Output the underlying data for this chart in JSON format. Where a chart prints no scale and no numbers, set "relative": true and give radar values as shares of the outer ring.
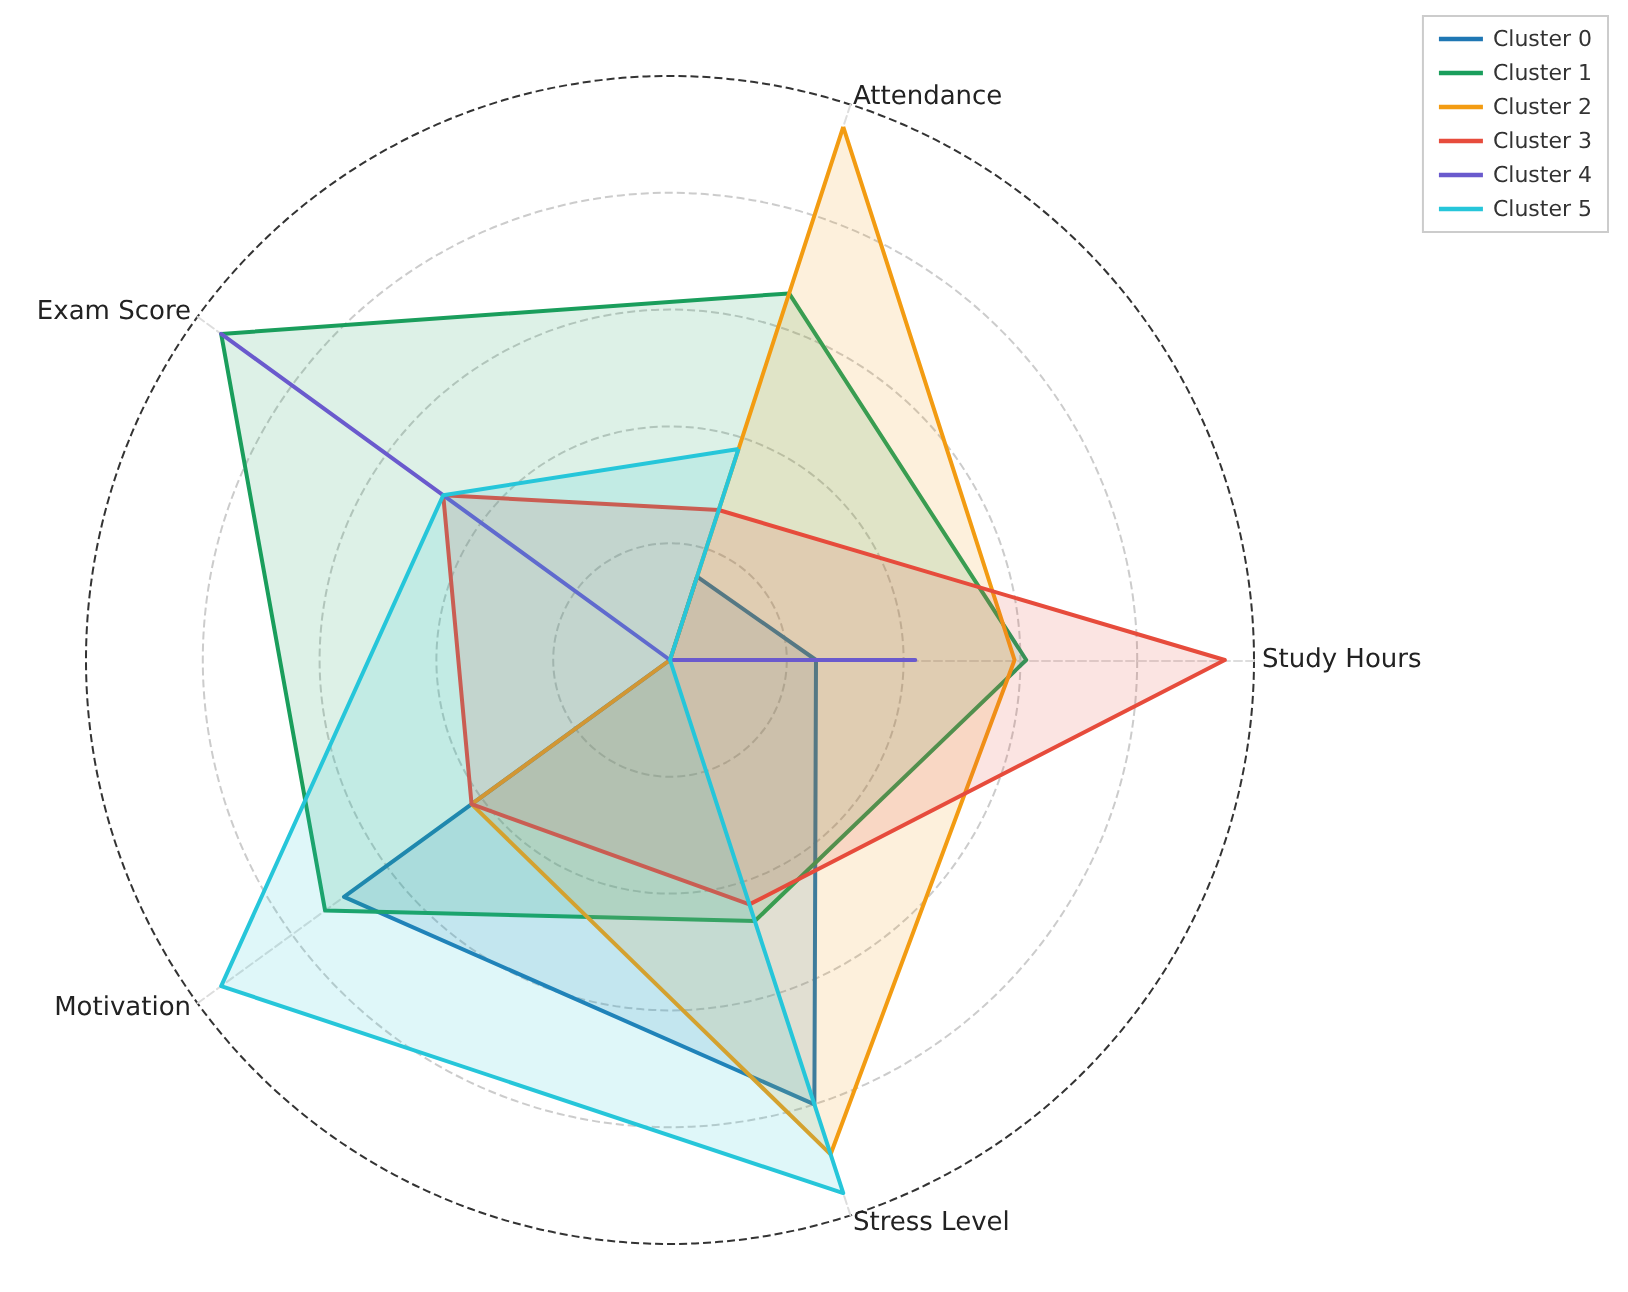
{
  "chart_data": {
    "type": "radar",
    "relative": true,
    "categories": [
      "Attendance",
      "Study Hours",
      "Stress Level",
      "Motivation",
      "Exam Score"
    ],
    "grid": true,
    "legend": "top right",
    "series": [
      {
        "name": "Cluster 0",
        "color": "#1f77b4",
        "values": [
          0.15,
          0.25,
          0.8,
          0.69,
          0
        ]
      },
      {
        "name": "Cluster 1",
        "color": "#1a9e5c",
        "values": [
          0.66,
          0.61,
          0.47,
          0.73,
          0.95
        ]
      },
      {
        "name": "Cluster 2",
        "color": "#f39c12",
        "values": [
          0.96,
          0.59,
          0.89,
          0.42,
          0
        ]
      },
      {
        "name": "Cluster 3",
        "color": "#e74c3c",
        "values": [
          0.27,
          0.95,
          0.44,
          0.42,
          0.48
        ]
      },
      {
        "name": "Cluster 4",
        "color": "#6a5acd",
        "values": [
          0,
          0.42,
          0,
          0,
          0.95
        ]
      },
      {
        "name": "Cluster 5",
        "color": "#26c6da",
        "values": [
          0.38,
          0,
          0.96,
          0.95,
          0.48
        ]
      }
    ]
  }
}
